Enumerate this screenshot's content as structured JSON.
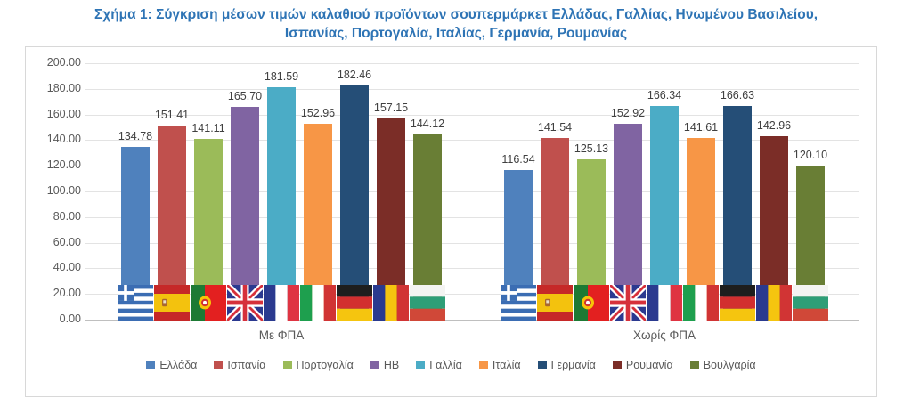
{
  "figure_title": {
    "line1": "Σχήμα 1: Σύγκριση μέσων τιμών καλαθιού προϊόντων σουπερμάρκετ Ελλάδας, Γαλλίας, Ηνωμένου Βασιλείου,",
    "line2": "Ισπανίας, Πορτογαλία, Ιταλίας, Γερμανία, Ρουμανίας"
  },
  "colors": {
    "title": "#2E74B5",
    "axis_text": "#595959",
    "data_label": "#404040",
    "gridline": "#E3E3E3",
    "axis_line": "#BFBFBF",
    "chart_border": "#D8D8D8"
  },
  "chart_data": {
    "type": "bar",
    "title": "",
    "xlabel": "",
    "ylabel": "",
    "categories": [
      "Με ΦΠΑ",
      "Χωρίς ΦΠΑ"
    ],
    "series": [
      {
        "name": "Ελλάδα",
        "country": "greece",
        "color": "#4F81BD",
        "values": [
          134.78,
          116.54
        ]
      },
      {
        "name": "Ισπανία",
        "country": "spain",
        "color": "#C0504D",
        "values": [
          151.41,
          141.54
        ]
      },
      {
        "name": "Πορτογαλία",
        "country": "portugal",
        "color": "#9BBB59",
        "values": [
          141.11,
          125.13
        ]
      },
      {
        "name": "ΗΒ",
        "country": "uk",
        "color": "#8064A2",
        "values": [
          165.7,
          152.92
        ]
      },
      {
        "name": "Γαλλία",
        "country": "france",
        "color": "#4BACC6",
        "values": [
          181.59,
          166.34
        ]
      },
      {
        "name": "Ιταλία",
        "country": "italy",
        "color": "#F79646",
        "values": [
          152.96,
          141.61
        ]
      },
      {
        "name": "Γερμανία",
        "country": "germany",
        "color": "#254E77",
        "values": [
          182.46,
          166.63
        ]
      },
      {
        "name": "Ρουμανία",
        "country": "romania",
        "color": "#7B2D27",
        "values": [
          157.15,
          142.96
        ]
      },
      {
        "name": "Βουλγαρία",
        "country": "bulgaria",
        "color": "#697E35",
        "values": [
          144.12,
          120.1
        ]
      }
    ],
    "ylim": [
      0,
      200
    ],
    "ytick_step": 20,
    "value_decimals": 2,
    "grid": true,
    "legend_position": "bottom",
    "flags_on_bars": true
  }
}
